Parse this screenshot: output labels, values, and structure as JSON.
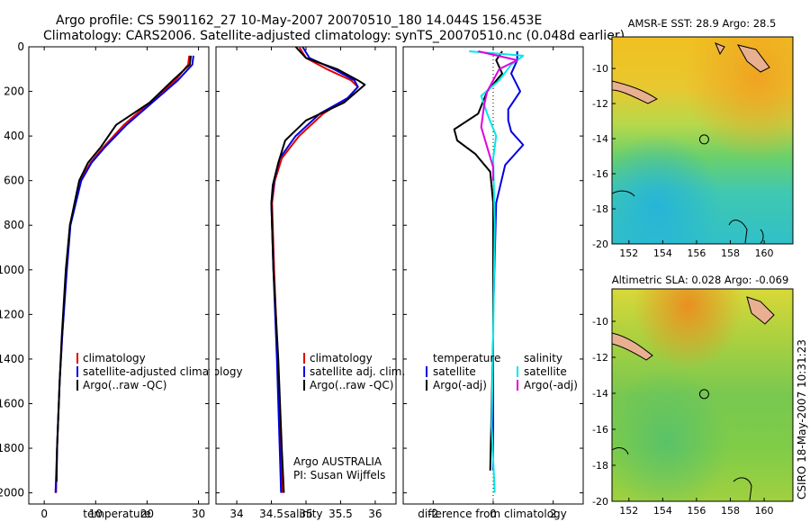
{
  "header": {
    "line1": "Argo profile: CS 5901162_27 10-May-2007 20070510_180 14.044S 156.453E",
    "line2": "Climatology: CARS2006. Satellite-adjusted climatology: synTS_20070510.nc (0.048d earlier)"
  },
  "footer_credit": "CSIRO 18-May-2007 10:31:23",
  "colors": {
    "climatology": "#e00000",
    "satellite": "#0000e0",
    "argo": "#000000",
    "cyan": "#00e8e8",
    "magenta": "#e000e0"
  },
  "chart_data": [
    {
      "id": "temperature",
      "type": "line",
      "xlabel": "temperature",
      "ylabel": "",
      "xlim": [
        -3,
        32
      ],
      "ylim": [
        2050,
        0
      ],
      "xticks": [
        0,
        10,
        20,
        30
      ],
      "yticks": [
        0,
        200,
        400,
        600,
        800,
        1000,
        1200,
        1400,
        1600,
        1800,
        2000
      ],
      "legend": [
        "climatology",
        "satellite-adjusted climatology",
        "Argo(..raw -QC)"
      ],
      "series": [
        {
          "name": "climatology",
          "color": "#e00000",
          "x": [
            28.2,
            28.0,
            25.5,
            20.5,
            15.5,
            11.5,
            9.0,
            7.0,
            5.0,
            4.3,
            3.5,
            3.0,
            2.5,
            2.3
          ],
          "y": [
            40,
            80,
            150,
            250,
            350,
            450,
            520,
            600,
            800,
            1000,
            1300,
            1500,
            1800,
            2000
          ]
        },
        {
          "name": "satellite-adjusted climatology",
          "color": "#0000e0",
          "x": [
            29.0,
            28.8,
            26.0,
            21.0,
            16.0,
            11.8,
            9.2,
            7.2,
            5.1,
            4.4,
            3.5,
            3.0,
            2.5,
            2.2
          ],
          "y": [
            40,
            80,
            150,
            250,
            350,
            450,
            520,
            600,
            800,
            1000,
            1300,
            1500,
            1800,
            2000
          ]
        },
        {
          "name": "Argo(..raw -QC)",
          "color": "#000000",
          "x": [
            28.5,
            28.3,
            25.0,
            20.5,
            14.0,
            11.0,
            8.5,
            6.8,
            5.0,
            4.2,
            3.4,
            3.0,
            2.5,
            2.4
          ],
          "y": [
            40,
            80,
            150,
            250,
            350,
            450,
            520,
            600,
            800,
            1000,
            1300,
            1500,
            1800,
            1950
          ]
        }
      ]
    },
    {
      "id": "salinity",
      "type": "line",
      "xlabel": "salinity",
      "xlim": [
        33.7,
        36.3
      ],
      "ylim": [
        2050,
        0
      ],
      "xticks": [
        34,
        34.5,
        35,
        35.5,
        36
      ],
      "legend": [
        "climatology",
        "satellite adj. clim.",
        "Argo(..raw -QC)"
      ],
      "annotations": [
        "Argo AUSTRALIA",
        "PI: Susan Wijffels"
      ],
      "series": [
        {
          "name": "climatology",
          "color": "#e00000",
          "x": [
            34.9,
            35.0,
            35.3,
            35.65,
            35.75,
            35.6,
            35.25,
            34.9,
            34.65,
            34.55,
            34.51,
            34.54,
            34.59,
            34.63,
            34.66
          ],
          "y": [
            0,
            50,
            100,
            150,
            180,
            230,
            300,
            400,
            500,
            600,
            700,
            1000,
            1400,
            1800,
            2000
          ]
        },
        {
          "name": "satellite adj. clim.",
          "color": "#0000e0",
          "x": [
            34.95,
            35.05,
            35.4,
            35.7,
            35.75,
            35.6,
            35.2,
            34.85,
            34.62,
            34.54,
            34.5,
            34.53,
            34.58,
            34.62,
            34.64
          ],
          "y": [
            0,
            50,
            100,
            150,
            180,
            230,
            300,
            400,
            500,
            600,
            700,
            1000,
            1400,
            1800,
            2000
          ]
        },
        {
          "name": "Argo(..raw -QC)",
          "color": "#000000",
          "x": [
            34.85,
            35.0,
            35.45,
            35.75,
            35.85,
            35.55,
            35.0,
            34.7,
            34.6,
            34.52,
            34.5,
            34.53,
            34.6,
            34.65,
            34.68
          ],
          "y": [
            0,
            50,
            100,
            150,
            170,
            250,
            330,
            420,
            520,
            620,
            700,
            1000,
            1400,
            1800,
            2000
          ]
        }
      ]
    },
    {
      "id": "difference",
      "type": "line",
      "xlabel": "difference from climatology",
      "xlim": [
        -3,
        3
      ],
      "ylim": [
        2050,
        0
      ],
      "xticks": [
        -2,
        0,
        2
      ],
      "legend": [
        "temperature",
        "satellite",
        "Argo(-adj)",
        "salinity",
        "satellite",
        "Argo(-adj)"
      ],
      "series": [
        {
          "name": "temperature satellite",
          "color": "#0000e0",
          "x": [
            0.8,
            0.8,
            0.6,
            0.9,
            0.5,
            0.5,
            0.6,
            1.0,
            0.4,
            0.1,
            0.0,
            0.0
          ],
          "y": [
            20,
            60,
            120,
            200,
            280,
            330,
            380,
            440,
            530,
            700,
            1200,
            1900
          ]
        },
        {
          "name": "temperature Argo(-adj)",
          "color": "#000000",
          "x": [
            0.3,
            0.1,
            0.3,
            -0.2,
            -0.5,
            -1.3,
            -1.2,
            -0.6,
            -0.1,
            0.0,
            0.0,
            -0.1
          ],
          "y": [
            20,
            60,
            120,
            200,
            300,
            370,
            420,
            480,
            560,
            700,
            1300,
            1900
          ]
        },
        {
          "name": "salinity satellite",
          "color": "#00e8e8",
          "x": [
            -0.8,
            1.0,
            0.6,
            0.2,
            -0.4,
            -0.2,
            0.1,
            0.0,
            0.05,
            0.0,
            -0.05,
            0.05
          ],
          "y": [
            20,
            40,
            80,
            150,
            220,
            300,
            400,
            500,
            800,
            1300,
            1700,
            2000
          ]
        },
        {
          "name": "salinity Argo(-adj)",
          "color": "#e000e0",
          "x": [
            -0.5,
            0.8,
            0.2,
            -0.2,
            -0.3,
            -0.4,
            -0.2,
            0.0,
            0.0
          ],
          "y": [
            20,
            60,
            100,
            200,
            260,
            360,
            450,
            540,
            600
          ]
        }
      ]
    },
    {
      "id": "sst_map",
      "type": "heatmap",
      "title": "AMSR-E SST: 28.9  Argo: 28.5",
      "xlim": [
        151,
        161.7
      ],
      "ylim": [
        -20,
        -8.2
      ],
      "xticks": [
        152,
        154,
        156,
        158,
        160
      ],
      "yticks": [
        -10,
        -12,
        -14,
        -16,
        -18,
        -20
      ],
      "float_position": [
        156.453,
        -14.044
      ]
    },
    {
      "id": "sla_map",
      "type": "heatmap",
      "title": "Altimetric SLA: 0.028  Argo: -0.069",
      "xlim": [
        151,
        161.7
      ],
      "ylim": [
        -20,
        -8.2
      ],
      "xticks": [
        152,
        154,
        156,
        158,
        160
      ],
      "yticks": [
        -10,
        -12,
        -14,
        -16,
        -18,
        -20
      ],
      "float_position": [
        156.453,
        -14.044
      ]
    }
  ]
}
